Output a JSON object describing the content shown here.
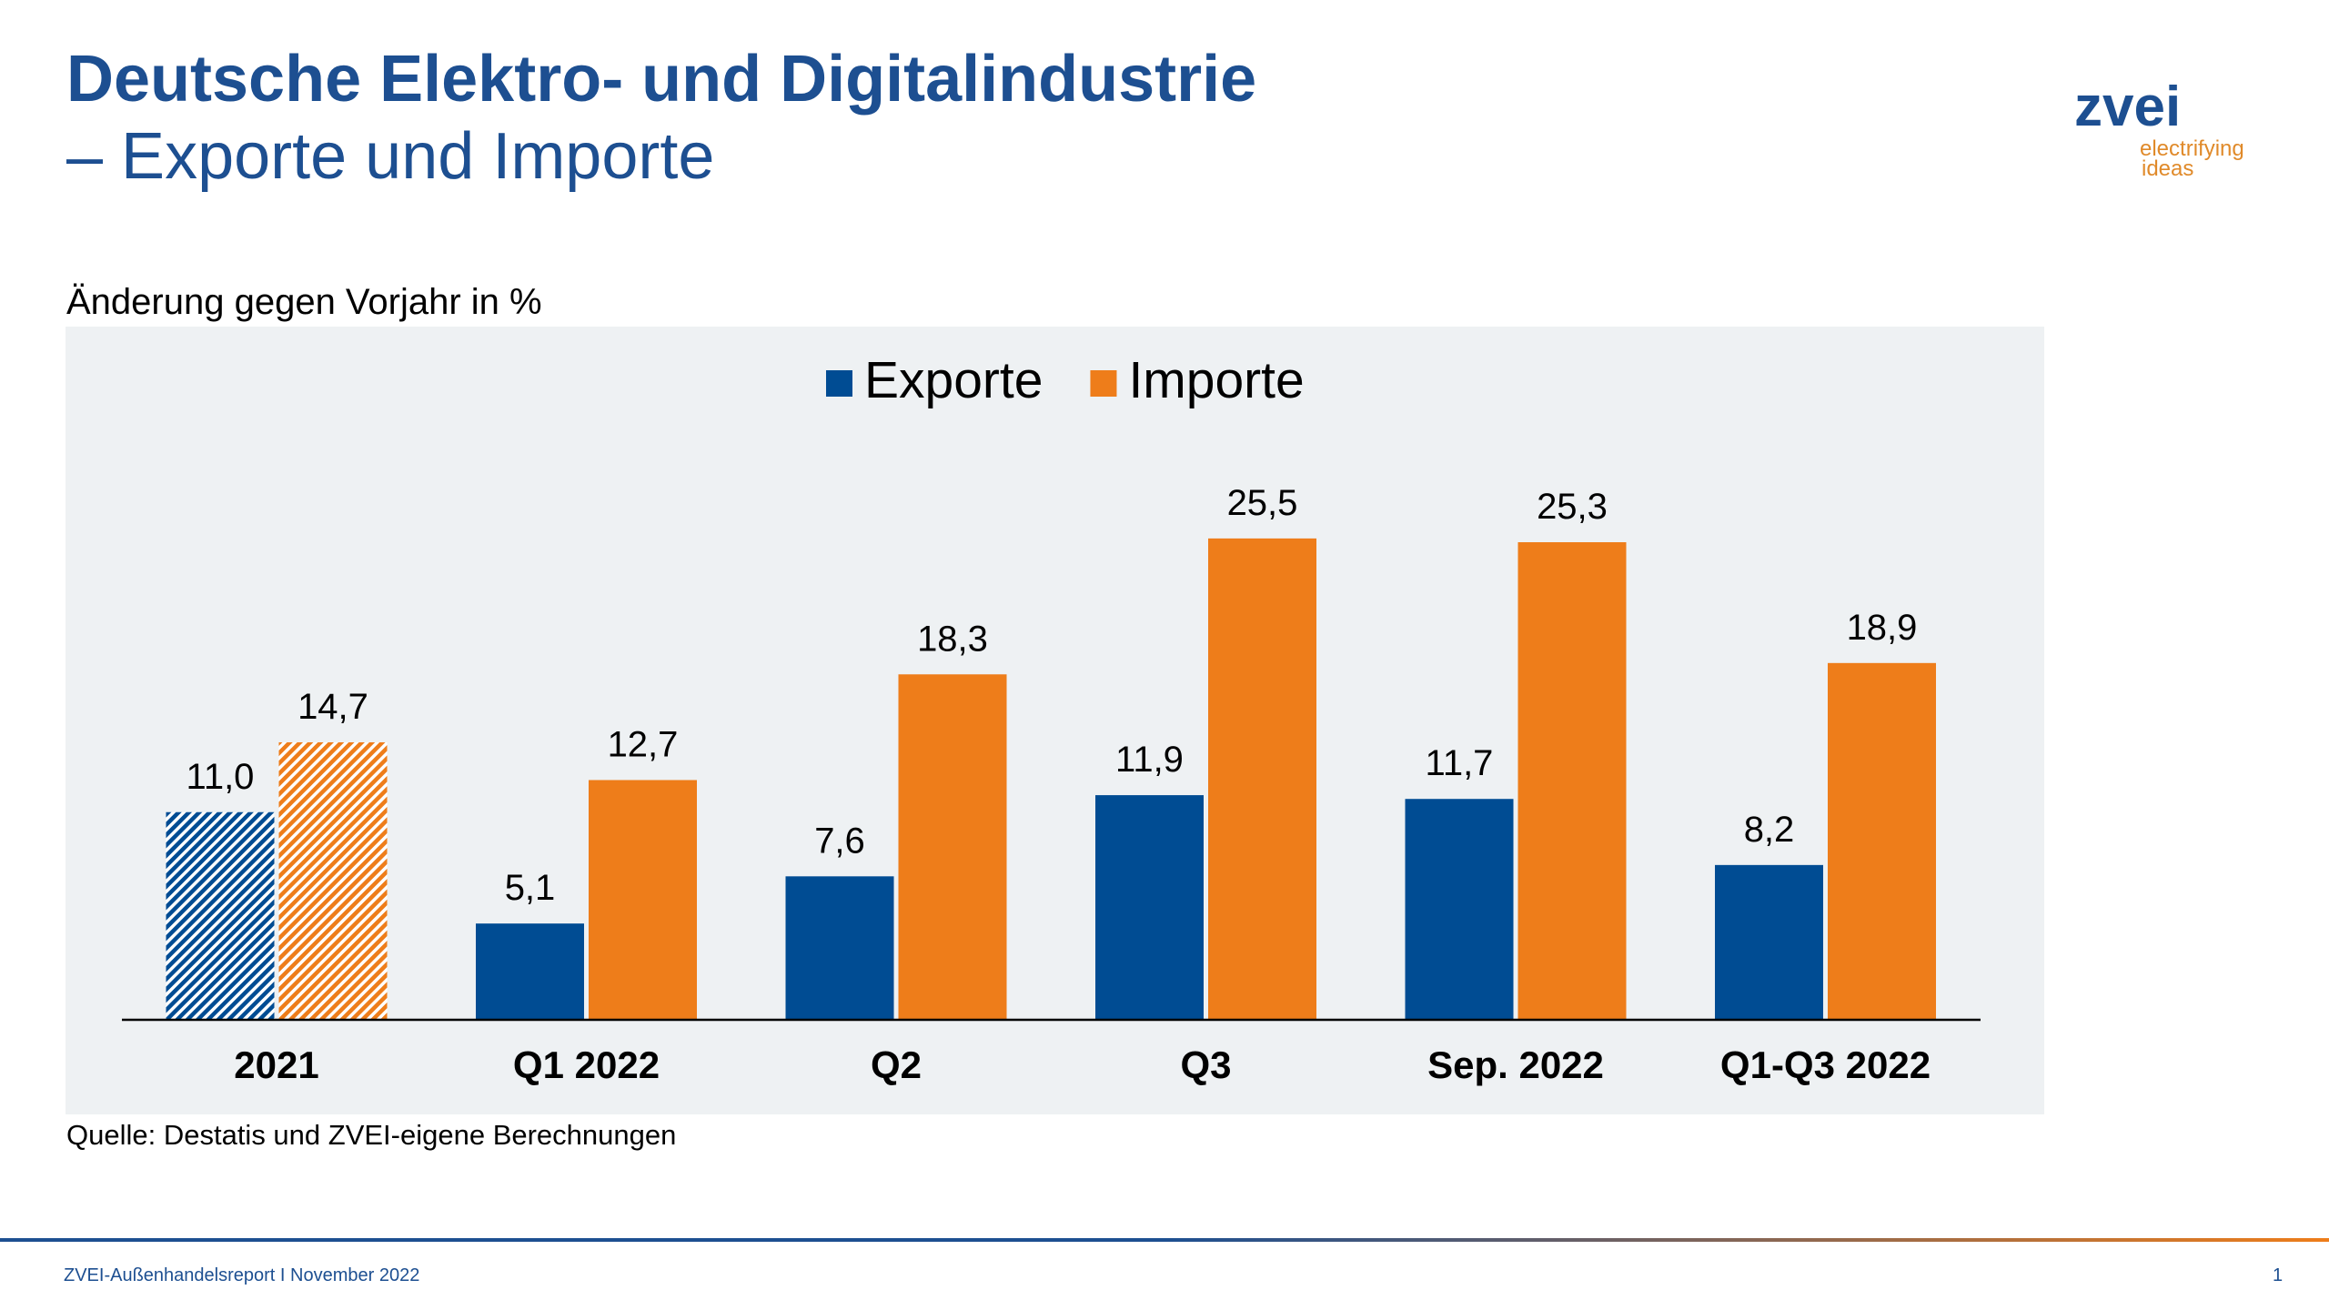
{
  "header": {
    "title": "Deutsche Elektro- und Digitalindustrie",
    "subtitle": "– Exporte und Importe"
  },
  "logo": {
    "name": "zvei",
    "tagline_1": "electrifying",
    "tagline_2": "ideas"
  },
  "chart_data": {
    "type": "bar",
    "subtitle": "Änderung gegen Vorjahr in %",
    "categories": [
      "2021",
      "Q1 2022",
      "Q2",
      "Q3",
      "Sep. 2022",
      "Q1-Q3 2022"
    ],
    "series": [
      {
        "name": "Exporte",
        "color": "#004c93",
        "values": [
          11.0,
          5.1,
          7.6,
          11.9,
          11.7,
          8.2
        ],
        "value_labels": [
          "11,0",
          "5,1",
          "7,6",
          "11,9",
          "11,7",
          "8,2"
        ]
      },
      {
        "name": "Importe",
        "color": "#ee7d1a",
        "values": [
          14.7,
          12.7,
          18.3,
          25.5,
          25.3,
          18.9
        ],
        "value_labels": [
          "14,7",
          "12,7",
          "18,3",
          "25,5",
          "25,3",
          "18,9"
        ]
      }
    ],
    "hatched": [
      true,
      false,
      false,
      false,
      false,
      false
    ],
    "legend": "top",
    "source": "Quelle: Destatis und ZVEI-eigene Berechnungen"
  },
  "footer": {
    "text": "ZVEI-Außenhandelsreport I November 2022",
    "page": "1"
  }
}
